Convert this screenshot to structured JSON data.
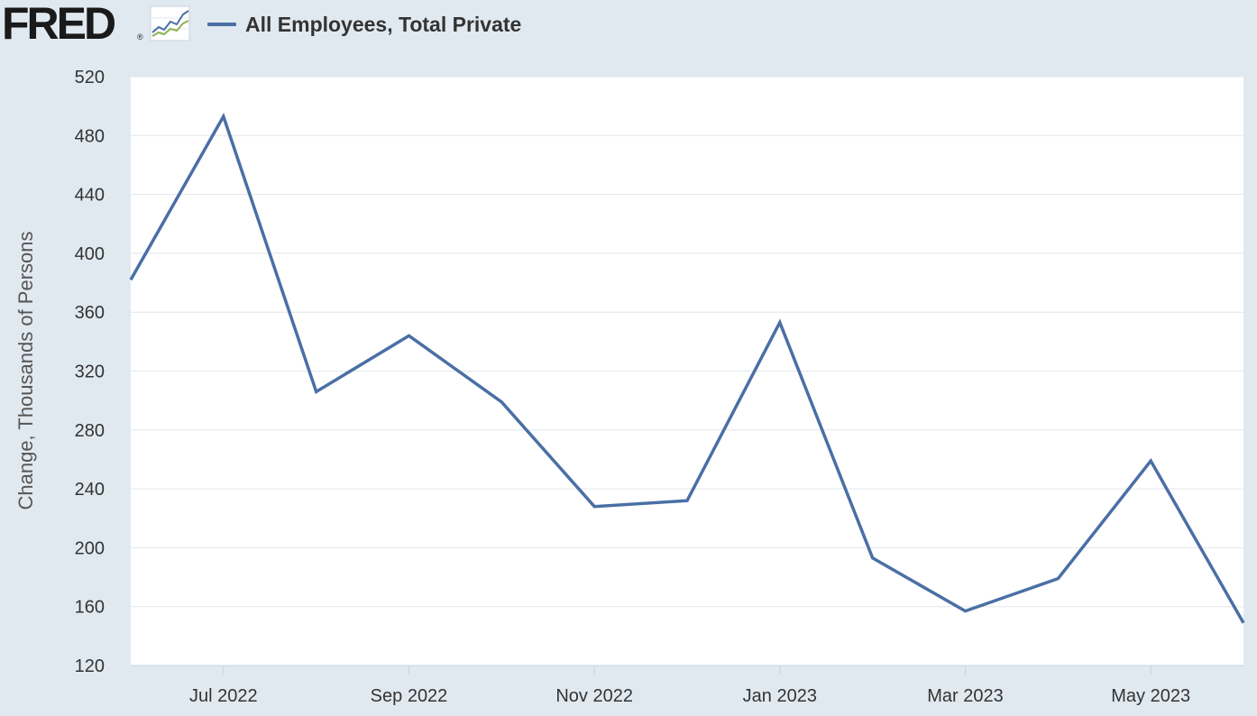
{
  "header": {
    "logo_text": "FRED",
    "logo_mark": "®",
    "icon": "line-chart-icon"
  },
  "legend": {
    "series_label": "All Employees, Total Private",
    "color": "#4a6fa5"
  },
  "chart_data": {
    "type": "line",
    "title": "",
    "xlabel": "",
    "ylabel": "Change, Thousands of Persons",
    "ylim": [
      120,
      520
    ],
    "yticks": [
      120,
      160,
      200,
      240,
      280,
      320,
      360,
      400,
      440,
      480,
      520
    ],
    "xlim": [
      "2022-06",
      "2023-06"
    ],
    "xticks": [
      {
        "date": "2022-07",
        "label": "Jul 2022"
      },
      {
        "date": "2022-09",
        "label": "Sep 2022"
      },
      {
        "date": "2022-11",
        "label": "Nov 2022"
      },
      {
        "date": "2023-01",
        "label": "Jan 2023"
      },
      {
        "date": "2023-03",
        "label": "Mar 2023"
      },
      {
        "date": "2023-05",
        "label": "May 2023"
      }
    ],
    "grid": true,
    "legend_position": "top-left",
    "series": [
      {
        "name": "All Employees, Total Private",
        "color": "#4a6fa5",
        "x": [
          "2022-06",
          "2022-07",
          "2022-08",
          "2022-09",
          "2022-10",
          "2022-11",
          "2022-12",
          "2023-01",
          "2023-02",
          "2023-03",
          "2023-04",
          "2023-05",
          "2023-06"
        ],
        "values": [
          382,
          493,
          306,
          344,
          299,
          228,
          232,
          353,
          193,
          157,
          179,
          259,
          149
        ]
      }
    ]
  }
}
